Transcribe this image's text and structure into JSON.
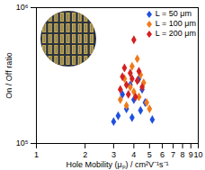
{
  "chart_data": {
    "type": "scatter",
    "x_label": "Hole Mobility (μₚ) / cm²V⁻¹s⁻¹",
    "y_label": "On / Off ratio",
    "log": true,
    "legend": "top-right",
    "marker": "diamond",
    "xlim": [
      1,
      10
    ],
    "xticks": [
      1,
      2,
      3,
      4,
      5,
      6,
      7,
      8,
      9,
      10
    ],
    "ylim": [
      100000,
      1000000
    ],
    "yticks": [
      {
        "value": 100000,
        "label": "10⁵"
      },
      {
        "value": 1000000,
        "label": "10⁶"
      }
    ],
    "series": [
      {
        "name": "L = 50 μm",
        "color": "#1f4fe0",
        "x": [
          4.3,
          3.8,
          4.5,
          3.4,
          4.0,
          4.7,
          3.6,
          4.4,
          3.2,
          3.9,
          5.2,
          3.0
        ],
        "values": [
          300000,
          270000,
          250000,
          230000,
          210000,
          200000,
          180000,
          175000,
          160000,
          155000,
          150000,
          145000
        ]
      },
      {
        "name": "L = 100 μm",
        "color": "#f07a1a",
        "x": [
          4.2,
          3.9,
          4.4,
          3.5,
          4.6,
          3.8,
          4.0,
          3.3,
          4.8,
          3.6,
          5.0,
          4.3
        ],
        "values": [
          420000,
          370000,
          320000,
          300000,
          280000,
          260000,
          240000,
          210000,
          200000,
          190000,
          180000,
          220000
        ]
      },
      {
        "name": "L = 200 μm",
        "color": "#d42020",
        "x": [
          4.0,
          3.5,
          3.8,
          3.9,
          4.2,
          3.6,
          3.3,
          4.5,
          3.7,
          4.1,
          3.4,
          4.3
        ],
        "values": [
          580000,
          360000,
          330000,
          300000,
          290000,
          270000,
          250000,
          260000,
          230000,
          220000,
          310000,
          340000
        ]
      }
    ]
  }
}
